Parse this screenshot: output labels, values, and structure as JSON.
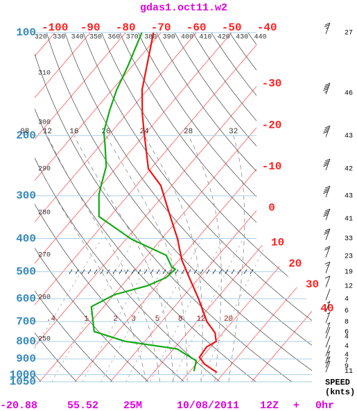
{
  "chart_data": {
    "type": "skewt",
    "title": "gdas1.oct11.w2",
    "log_y": true,
    "ylim": [
      1050,
      100
    ],
    "yticks": [
      100,
      200,
      300,
      400,
      500,
      600,
      700,
      800,
      900,
      1000,
      1050
    ],
    "xticks": [
      -100,
      -90,
      -80,
      -70,
      -60,
      -50,
      -40,
      -30,
      -20,
      -10,
      0,
      10,
      20,
      30,
      40
    ],
    "theta_ticks": [
      250,
      260,
      270,
      280,
      290,
      300,
      310,
      320,
      330,
      340,
      350,
      360,
      370,
      380,
      390,
      400,
      410,
      420,
      430,
      440
    ],
    "moist_ticks": [
      {
        "value": 8,
        "label": "08"
      },
      12,
      16,
      20,
      24,
      28,
      32
    ],
    "mixing_ratio_ticks": [
      {
        "value": 0.4,
        "label": ".4"
      },
      1,
      2,
      3,
      5,
      8,
      12,
      20
    ],
    "series": [
      {
        "color": "#ee1111",
        "values": [
          100,
          147,
          173,
          200,
          250,
          280,
          341,
          400,
          462,
          515,
          600,
          700,
          755,
          800,
          830,
          890,
          932,
          986
        ],
        "x": [
          -72.1,
          -61.5,
          -55.6,
          -49.8,
          -40.7,
          -33.1,
          -23.5,
          -15.6,
          -9.2,
          -3.4,
          4.9,
          12.8,
          17.8,
          20.2,
          18.8,
          19.3,
          22.4,
          27.9
        ]
      },
      {
        "color": "#11aa11",
        "values": [
          100,
          125,
          147,
          169,
          195,
          214,
          246,
          270,
          297,
          345,
          402,
          448,
          485,
          492,
          520,
          550,
          584,
          633,
          748,
          799,
          841,
          911,
          977
        ],
        "x": [
          -75.4,
          -71.3,
          -68.7,
          -65.7,
          -62.2,
          -58.5,
          -53.2,
          -50.9,
          -48.5,
          -43.1,
          -28.4,
          -14.7,
          -10.3,
          -8.8,
          -9.4,
          -12.8,
          -19.9,
          -23.5,
          -16.7,
          -5.7,
          10.9,
          19.2,
          21.1
        ]
      }
    ],
    "wind": {
      "pressure": [
        100,
        150,
        200,
        250,
        300,
        350,
        400,
        450,
        500,
        550,
        600,
        650,
        700,
        750,
        775,
        825,
        875,
        910,
        945,
        975
      ],
      "values": [
        27,
        46,
        43,
        42,
        43,
        41,
        33,
        23,
        19,
        12,
        4,
        6,
        8,
        6,
        4,
        4,
        4,
        7,
        9,
        11
      ]
    },
    "wind_label": [
      "SPEED",
      "(knts)"
    ],
    "footer": [
      -20.88,
      55.52,
      "25M",
      "10/08/2011",
      "12Z",
      "+",
      "0hr"
    ]
  }
}
